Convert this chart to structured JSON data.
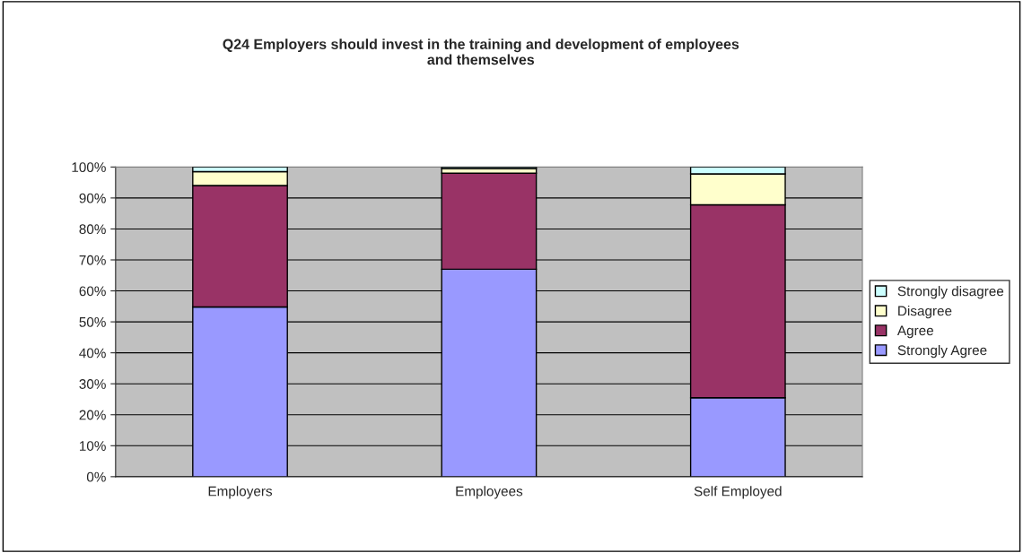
{
  "chart_data": {
    "type": "bar",
    "stacked": true,
    "title": "Q24 Employers should invest in the training and development of employees\nand themselves",
    "categories": [
      "Employers",
      "Employees",
      "Self Employed"
    ],
    "series": [
      {
        "name": "Strongly Agree",
        "color": "#9999ff",
        "values": [
          54.8,
          67,
          25.5
        ]
      },
      {
        "name": "Agree",
        "color": "#993366",
        "values": [
          39.2,
          31,
          62.3
        ]
      },
      {
        "name": "Disagree",
        "color": "#ffffcc",
        "values": [
          4.5,
          1.5,
          10
        ]
      },
      {
        "name": "Strongly disagree",
        "color": "#ccffff",
        "values": [
          1.5,
          0.5,
          2.2
        ]
      }
    ],
    "ylim": [
      0,
      100
    ],
    "yticks": [
      {
        "value": 0,
        "label": "0%"
      },
      {
        "value": 10,
        "label": "10%"
      },
      {
        "value": 20,
        "label": "20%"
      },
      {
        "value": 30,
        "label": "30%"
      },
      {
        "value": 40,
        "label": "40%"
      },
      {
        "value": 50,
        "label": "50%"
      },
      {
        "value": 60,
        "label": "60%"
      },
      {
        "value": 70,
        "label": "70%"
      },
      {
        "value": 80,
        "label": "80%"
      },
      {
        "value": 90,
        "label": "90%"
      },
      {
        "value": 100,
        "label": "100%"
      }
    ],
    "grid": "y",
    "legend": "right"
  }
}
